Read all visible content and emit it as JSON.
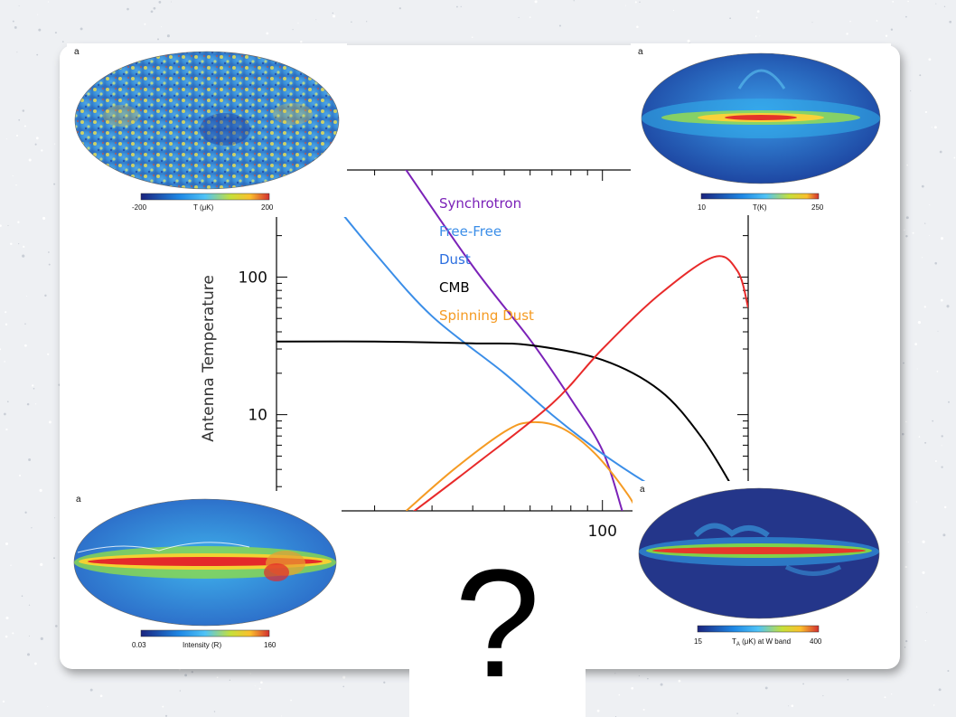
{
  "chart_data": {
    "type": "line",
    "title": "",
    "xlabel": "",
    "ylabel": "Antenna Temperature",
    "xscale": "log",
    "yscale": "log",
    "xlim": [
      10,
      280
    ],
    "ylim": [
      2,
      600
    ],
    "x_tick_labels": [
      "100"
    ],
    "y_tick_labels": [
      "10",
      "100"
    ],
    "legend": {
      "placement": "top-center",
      "entries": [
        {
          "name": "Synchrotron",
          "color": "#7b22b8"
        },
        {
          "name": "Free-Free",
          "color": "#3b8ee8"
        },
        {
          "name": "Dust",
          "color": "#2c6fe0"
        },
        {
          "name": "CMB",
          "color": "#000000"
        },
        {
          "name": "Spinning Dust",
          "color": "#f59b23"
        }
      ]
    },
    "series": [
      {
        "color": "#7b22b8",
        "x": [
          23,
          40,
          60,
          80,
          100,
          115
        ],
        "y": [
          800,
          120,
          35,
          13,
          5.5,
          2
        ]
      },
      {
        "color": "#3b8ee8",
        "x": [
          14,
          20,
          30,
          50,
          70,
          100,
          150,
          200,
          245
        ],
        "y": [
          420,
          150,
          52,
          20,
          10,
          5.2,
          2.8,
          2.0,
          1.6
        ]
      },
      {
        "color": "#000000",
        "x": [
          10,
          20,
          40,
          60,
          100,
          150,
          200,
          250,
          280
        ],
        "y": [
          34,
          34,
          33,
          32,
          25,
          15,
          7,
          3,
          1.8
        ]
      },
      {
        "color": "#f59b23",
        "x": [
          25,
          35,
          50,
          60,
          75,
          95,
          120,
          130
        ],
        "y": [
          2,
          4,
          7.5,
          8.8,
          8,
          5.2,
          2.6,
          1.8
        ]
      },
      {
        "color": "#e82a2a",
        "x": [
          25,
          40,
          70,
          100,
          150,
          220,
          260,
          280
        ],
        "y": [
          1.8,
          4.2,
          12,
          30,
          75,
          140,
          110,
          60
        ]
      }
    ]
  },
  "sky_maps": [
    {
      "label": "a",
      "colorbar": {
        "min": "-200",
        "unit": "T (μK)",
        "max": "200"
      }
    },
    {
      "label": "a",
      "colorbar": {
        "min": "10",
        "unit": "T(K)",
        "max": "250"
      }
    },
    {
      "label": "a",
      "colorbar": {
        "min": "0.03",
        "unit": "Intensity (R)",
        "max": "160"
      }
    },
    {
      "label": "a",
      "colorbar": {
        "min": "15",
        "unit_main": "T",
        "unit_sub": "A",
        "unit_rest": " (μK) at W band",
        "max": "400"
      }
    }
  ],
  "question": "?"
}
